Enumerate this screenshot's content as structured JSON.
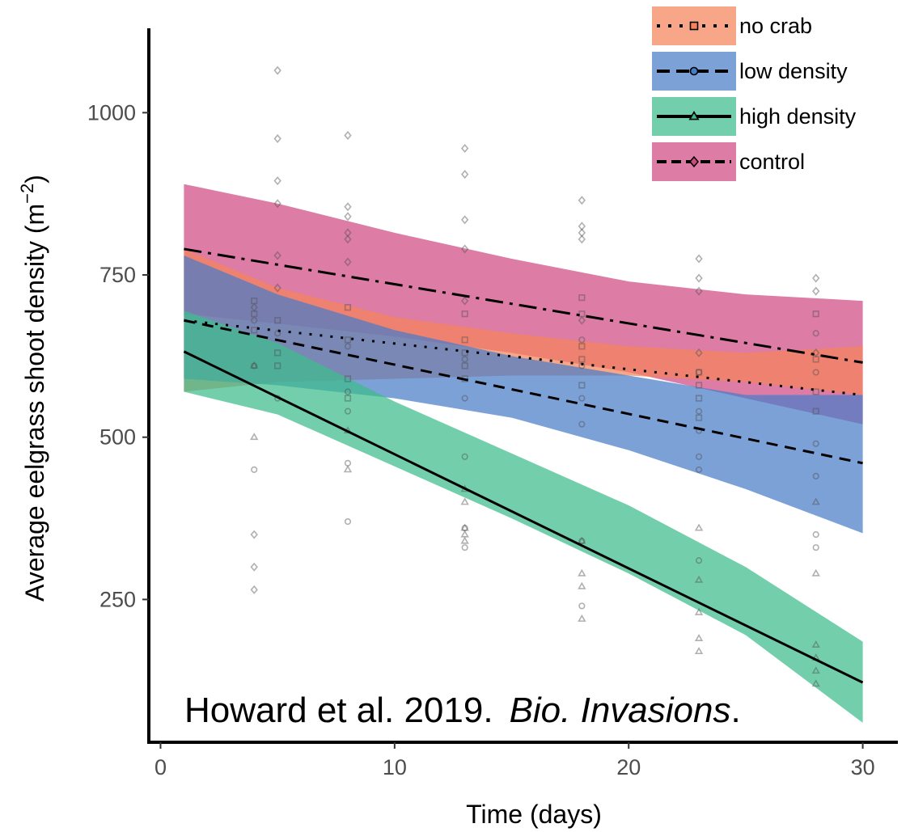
{
  "chart_data": {
    "type": "line",
    "xlabel": "Time (days)",
    "ylabel": "Average eelgrass shoot density (m",
    "ylabel_sup": "−2",
    "ylabel_close": ")",
    "xlim": [
      -0.5,
      31.5
    ],
    "ylim": [
      30,
      1130
    ],
    "x_ticks": [
      0,
      10,
      20,
      30
    ],
    "y_ticks": [
      250,
      500,
      750,
      1000
    ],
    "grid": false,
    "legend_position": "top-right",
    "citation": {
      "main": "Howard et al. 2019.",
      "journal": "Bio. Invasions",
      "end": "."
    },
    "series": [
      {
        "name": "no crab",
        "color": "#f4845a",
        "line_style": "dotted",
        "marker": "square",
        "fit": [
          [
            1,
            680
          ],
          [
            30,
            565
          ]
        ],
        "band": {
          "x": [
            1,
            5,
            10,
            15,
            20,
            25,
            30
          ],
          "lower": [
            570,
            585,
            590,
            595,
            595,
            585,
            565
          ],
          "upper": [
            790,
            730,
            685,
            660,
            640,
            630,
            640
          ]
        },
        "points": [
          [
            4,
            710
          ],
          [
            4,
            690
          ],
          [
            4,
            665
          ],
          [
            5,
            680
          ],
          [
            5,
            630
          ],
          [
            5,
            610
          ],
          [
            8,
            700
          ],
          [
            8,
            650
          ],
          [
            8,
            590
          ],
          [
            8,
            560
          ],
          [
            13,
            690
          ],
          [
            13,
            650
          ],
          [
            13,
            630
          ],
          [
            13,
            610
          ],
          [
            13,
            590
          ],
          [
            18,
            715
          ],
          [
            18,
            690
          ],
          [
            18,
            640
          ],
          [
            18,
            620
          ],
          [
            18,
            580
          ],
          [
            23,
            600
          ],
          [
            23,
            580
          ],
          [
            23,
            560
          ],
          [
            23,
            530
          ],
          [
            28,
            690
          ],
          [
            28,
            620
          ],
          [
            28,
            570
          ],
          [
            28,
            540
          ]
        ]
      },
      {
        "name": "low density",
        "color": "#4a7dc8",
        "line_style": "dashed",
        "marker": "circle",
        "fit": [
          [
            1,
            680
          ],
          [
            30,
            460
          ]
        ],
        "band": {
          "x": [
            1,
            5,
            10,
            15,
            20,
            25,
            30
          ],
          "lower": [
            590,
            580,
            560,
            530,
            480,
            420,
            352
          ],
          "upper": [
            780,
            720,
            665,
            625,
            595,
            565,
            565
          ]
        },
        "points": [
          [
            4,
            680
          ],
          [
            4,
            610
          ],
          [
            5,
            660
          ],
          [
            5,
            560
          ],
          [
            4,
            450
          ],
          [
            8,
            640
          ],
          [
            8,
            570
          ],
          [
            8,
            540
          ],
          [
            8,
            460
          ],
          [
            8,
            370
          ],
          [
            13,
            620
          ],
          [
            13,
            560
          ],
          [
            13,
            470
          ],
          [
            13,
            360
          ],
          [
            13,
            330
          ],
          [
            18,
            650
          ],
          [
            18,
            610
          ],
          [
            18,
            560
          ],
          [
            18,
            520
          ],
          [
            18,
            340
          ],
          [
            18,
            240
          ],
          [
            23,
            600
          ],
          [
            23,
            540
          ],
          [
            23,
            510
          ],
          [
            23,
            470
          ],
          [
            23,
            450
          ],
          [
            23,
            310
          ],
          [
            28,
            660
          ],
          [
            28,
            600
          ],
          [
            28,
            490
          ],
          [
            28,
            440
          ],
          [
            28,
            350
          ],
          [
            28,
            330
          ]
        ]
      },
      {
        "name": "high density",
        "color": "#3dbc8a",
        "line_style": "solid",
        "marker": "triangle",
        "fit": [
          [
            1,
            632
          ],
          [
            30,
            122
          ]
        ],
        "band": {
          "x": [
            1,
            5,
            10,
            15,
            20,
            25,
            30
          ],
          "lower": [
            570,
            535,
            455,
            375,
            290,
            195,
            60
          ],
          "upper": [
            695,
            645,
            555,
            475,
            395,
            300,
            185
          ]
        },
        "points": [
          [
            4,
            500
          ],
          [
            4,
            610
          ],
          [
            8,
            510
          ],
          [
            8,
            450
          ],
          [
            13,
            420
          ],
          [
            13,
            400
          ],
          [
            13,
            360
          ],
          [
            13,
            350
          ],
          [
            13,
            340
          ],
          [
            18,
            340
          ],
          [
            18,
            290
          ],
          [
            18,
            270
          ],
          [
            18,
            220
          ],
          [
            23,
            360
          ],
          [
            23,
            280
          ],
          [
            23,
            230
          ],
          [
            23,
            190
          ],
          [
            23,
            170
          ],
          [
            28,
            400
          ],
          [
            28,
            290
          ],
          [
            28,
            180
          ],
          [
            28,
            160
          ],
          [
            28,
            140
          ],
          [
            28,
            120
          ]
        ]
      },
      {
        "name": "control",
        "color": "#d04a82",
        "line_style": "dashdot",
        "marker": "diamond",
        "fit": [
          [
            1,
            790
          ],
          [
            30,
            615
          ]
        ],
        "band": {
          "x": [
            1,
            5,
            10,
            15,
            20,
            25,
            30
          ],
          "lower": [
            690,
            675,
            655,
            630,
            600,
            560,
            520
          ],
          "upper": [
            890,
            860,
            815,
            775,
            740,
            720,
            710
          ]
        },
        "points": [
          [
            4,
            700
          ],
          [
            4,
            265
          ],
          [
            4,
            300
          ],
          [
            4,
            350
          ],
          [
            5,
            1065
          ],
          [
            5,
            960
          ],
          [
            5,
            895
          ],
          [
            5,
            860
          ],
          [
            5,
            780
          ],
          [
            5,
            730
          ],
          [
            8,
            965
          ],
          [
            8,
            855
          ],
          [
            8,
            840
          ],
          [
            8,
            815
          ],
          [
            8,
            805
          ],
          [
            8,
            770
          ],
          [
            13,
            945
          ],
          [
            13,
            905
          ],
          [
            13,
            835
          ],
          [
            13,
            790
          ],
          [
            13,
            710
          ],
          [
            18,
            865
          ],
          [
            18,
            825
          ],
          [
            18,
            815
          ],
          [
            18,
            805
          ],
          [
            18,
            680
          ],
          [
            23,
            775
          ],
          [
            23,
            745
          ],
          [
            23,
            725
          ],
          [
            23,
            630
          ],
          [
            28,
            745
          ],
          [
            28,
            725
          ],
          [
            28,
            630
          ]
        ]
      }
    ]
  }
}
